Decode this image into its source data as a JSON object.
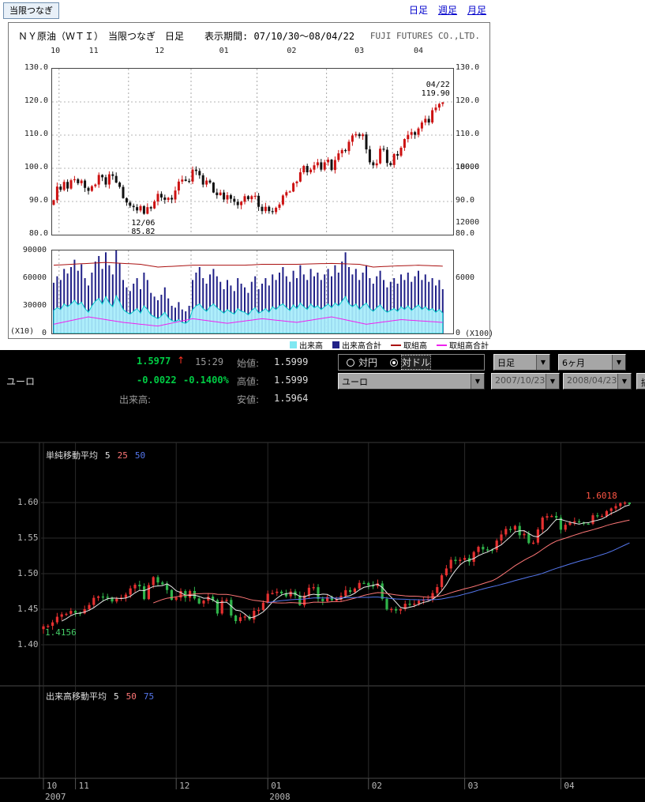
{
  "top_nav": {
    "tab": "当限つなぎ",
    "links": [
      {
        "label": "日足",
        "underline": false
      },
      {
        "label": "週足",
        "underline": true
      },
      {
        "label": "月足",
        "underline": true
      }
    ]
  },
  "wti": {
    "title": "ＮＹ原油（ＷＴＩ）　当限つなぎ　日足",
    "period_label": "表示期間: 07/10/30～08/04/22",
    "company": "FUJI FUTURES CO.,LTD."
  },
  "fx": {
    "pair": "ユーロ",
    "price": "1.5977",
    "arrow": "↑",
    "time": "15:29",
    "change": "-0.0022",
    "change_pct": "-0.1400%",
    "open_label": "始値:",
    "open_value": "1.5999",
    "high_label": "高値:",
    "high_value": "1.5999",
    "low_label": "安値:",
    "low_value": "1.5964",
    "volume_label": "出来高:",
    "radio_options": [
      {
        "label": "対円",
        "selected": false
      },
      {
        "label": "対ドル",
        "selected": true
      }
    ],
    "selects": {
      "timeframe": "日足",
      "range": "6ヶ月",
      "pair": "ユーロ",
      "date_from": "2007/10/23",
      "date_to": "2008/04/23"
    },
    "draw_button": "描"
  },
  "icons": {
    "dropdown_arrow": "▼"
  },
  "chart_data": [
    {
      "id": "wti_price",
      "type": "candlestick",
      "title": "ＮＹ原油（ＷＴＩ） 当限つなぎ 日足",
      "period": "07/10/30～08/04/22",
      "ylim": [
        80.0,
        130.0
      ],
      "yticks": [
        130,
        120,
        110,
        100,
        90,
        80
      ],
      "month_labels": [
        "10",
        "11",
        "12",
        "01",
        "02",
        "03",
        "04"
      ],
      "month_start_idx": [
        0,
        2,
        22,
        40,
        59,
        79,
        98
      ],
      "closes": [
        90.4,
        94.5,
        93.5,
        95.9,
        93.9,
        96.4,
        96.7,
        95.5,
        96.3,
        94.1,
        93.2,
        94.6,
        95.1,
        98.0,
        97.3,
        95.1,
        98.2,
        97.7,
        95.7,
        94.4,
        91.0,
        89.7,
        88.7,
        88.3,
        87.3,
        88.6,
        86.3,
        88.3,
        87.9,
        90.0,
        92.3,
        91.2,
        90.5,
        91.1,
        90.6,
        93.3,
        96.0,
        96.6,
        96.2,
        96.0,
        99.6,
        99.2,
        97.9,
        95.1,
        96.3,
        95.7,
        92.7,
        91.9,
        92.7,
        90.6,
        91.9,
        90.8,
        89.9,
        88.9,
        89.9,
        91.6,
        90.7,
        91.6,
        91.7,
        88.4,
        87.1,
        88.4,
        87.1,
        86.8,
        88.1,
        89.1,
        91.8,
        92.8,
        93.0,
        95.5,
        96.0,
        98.8,
        100.7,
        98.8,
        99.6,
        100.9,
        101.8,
        99.6,
        101.8,
        102.6,
        99.5,
        102.5,
        104.5,
        105.5,
        105.2,
        108.0,
        109.9,
        110.3,
        109.7,
        110.2,
        105.7,
        101.8,
        100.9,
        101.5,
        105.9,
        105.6,
        101.6,
        101.0,
        104.3,
        103.8,
        106.2,
        108.8,
        110.1,
        110.9,
        110.1,
        112.0,
        113.8,
        114.9,
        113.8,
        117.5,
        118.3,
        119.4,
        119.9
      ],
      "min_low": 85.82,
      "colors": {
        "up": "#cc1111",
        "down": "#111111"
      },
      "annotations": [
        {
          "lines": [
            "04/22",
            "119.90"
          ],
          "value": 119.9,
          "idx": 112,
          "dy": -26,
          "align": "right"
        },
        {
          "lines": [
            "12/06",
            "85.82"
          ],
          "value": 85.82,
          "idx": 26,
          "dy": 5,
          "align": "center"
        }
      ]
    },
    {
      "id": "wti_volume",
      "type": "bar",
      "left_axis": {
        "ticks": [
          90000,
          60000,
          30000,
          0
        ],
        "unit": "(X10)"
      },
      "right_axis": {
        "ticks": [
          18000,
          12000,
          6000,
          0
        ],
        "unit": "(X100)"
      },
      "bars_k": [
        55,
        62,
        58,
        70,
        65,
        72,
        80,
        68,
        75,
        60,
        52,
        66,
        78,
        84,
        70,
        88,
        74,
        64,
        90,
        76,
        58,
        50,
        46,
        54,
        60,
        48,
        66,
        58,
        44,
        40,
        36,
        42,
        50,
        38,
        30,
        28,
        34,
        26,
        24,
        30,
        58,
        66,
        72,
        60,
        54,
        64,
        70,
        62,
        56,
        48,
        58,
        52,
        46,
        60,
        54,
        50,
        44,
        56,
        62,
        48,
        54,
        60,
        52,
        64,
        58,
        66,
        72,
        62,
        56,
        68,
        60,
        74,
        64,
        58,
        70,
        62,
        66,
        58,
        64,
        70,
        62,
        74,
        66,
        78,
        88,
        72,
        64,
        70,
        58,
        66,
        74,
        60,
        54,
        62,
        68,
        58,
        50,
        56,
        60,
        54,
        64,
        58,
        66,
        56,
        62,
        68,
        58,
        64,
        56,
        60,
        52,
        58,
        48
      ],
      "area_k": [
        25,
        28,
        26,
        32,
        29,
        32,
        36,
        31,
        34,
        27,
        23,
        30,
        35,
        38,
        32,
        40,
        33,
        29,
        41,
        34,
        26,
        23,
        21,
        24,
        27,
        22,
        30,
        26,
        20,
        18,
        16,
        19,
        23,
        17,
        14,
        13,
        15,
        12,
        11,
        14,
        26,
        30,
        32,
        27,
        24,
        29,
        32,
        28,
        25,
        22,
        26,
        23,
        21,
        27,
        24,
        23,
        20,
        25,
        28,
        22,
        24,
        27,
        23,
        29,
        26,
        30,
        32,
        28,
        25,
        31,
        27,
        33,
        29,
        26,
        32,
        28,
        30,
        26,
        29,
        32,
        28,
        33,
        30,
        35,
        40,
        32,
        29,
        32,
        26,
        30,
        33,
        27,
        24,
        28,
        31,
        26,
        23,
        25,
        27,
        24,
        29,
        26,
        30,
        25,
        28,
        31,
        26,
        29,
        25,
        27,
        23,
        26,
        22
      ],
      "open_interest_points": [
        [
          0,
          74
        ],
        [
          15,
          77
        ],
        [
          25,
          75
        ],
        [
          30,
          72
        ],
        [
          40,
          74
        ],
        [
          55,
          74
        ],
        [
          60,
          75
        ],
        [
          70,
          75
        ],
        [
          80,
          76
        ],
        [
          88,
          75
        ],
        [
          92,
          72
        ],
        [
          97,
          73
        ],
        [
          105,
          74
        ],
        [
          112,
          73
        ]
      ],
      "oi_total_points": [
        [
          0,
          10
        ],
        [
          10,
          18
        ],
        [
          20,
          12
        ],
        [
          30,
          8
        ],
        [
          40,
          16
        ],
        [
          50,
          11
        ],
        [
          60,
          16
        ],
        [
          70,
          12
        ],
        [
          80,
          18
        ],
        [
          90,
          10
        ],
        [
          100,
          15
        ],
        [
          112,
          12
        ]
      ],
      "colors": {
        "bar": "#222288",
        "area": "#a8eefb",
        "area_line": "#00cccc",
        "oi": "#aa1111",
        "oi_total": "#ee22ee"
      },
      "legend": [
        {
          "label": "出来高",
          "color": "#7fe8f2",
          "marker": "square"
        },
        {
          "label": "出来高合計",
          "color": "#222288",
          "marker": "square"
        },
        {
          "label": "取組高",
          "color": "#aa1111",
          "marker": "line"
        },
        {
          "label": "取組高合計",
          "color": "#ee22ee",
          "marker": "line"
        }
      ]
    },
    {
      "id": "eurusd",
      "type": "candlestick",
      "pair": "ユーロ",
      "yticks": [
        1.6,
        1.55,
        1.5,
        1.45,
        1.4
      ],
      "month_labels": [
        "10",
        "11",
        "12",
        "01",
        "02",
        "03",
        "04"
      ],
      "month_start_idx": [
        0,
        7,
        29,
        49,
        71,
        92,
        113
      ],
      "year_labels": [
        {
          "text": "2007",
          "month_index": 0
        },
        {
          "text": "2008",
          "month_index": 3
        }
      ],
      "closes": [
        1.4259,
        1.4266,
        1.4315,
        1.4394,
        1.4428,
        1.4435,
        1.4476,
        1.4449,
        1.4441,
        1.45,
        1.456,
        1.466,
        1.4679,
        1.4675,
        1.466,
        1.4609,
        1.4646,
        1.4663,
        1.4705,
        1.4793,
        1.4844,
        1.4822,
        1.4642,
        1.4839,
        1.4951,
        1.4876,
        1.485,
        1.477,
        1.4633,
        1.4663,
        1.4755,
        1.4663,
        1.4756,
        1.4651,
        1.458,
        1.4621,
        1.4677,
        1.4628,
        1.4439,
        1.4621,
        1.4631,
        1.4411,
        1.4333,
        1.4387,
        1.4398,
        1.4356,
        1.4478,
        1.449,
        1.459,
        1.4718,
        1.4727,
        1.4747,
        1.4722,
        1.4681,
        1.4749,
        1.4693,
        1.4556,
        1.4692,
        1.4802,
        1.481,
        1.4646,
        1.4611,
        1.4671,
        1.4625,
        1.4633,
        1.4689,
        1.4768,
        1.4743,
        1.4791,
        1.487,
        1.4868,
        1.4834,
        1.4823,
        1.4862,
        1.4645,
        1.4496,
        1.4503,
        1.4481,
        1.4504,
        1.4577,
        1.4576,
        1.4577,
        1.4618,
        1.4633,
        1.4644,
        1.4727,
        1.4811,
        1.4977,
        1.5073,
        1.5195,
        1.5178,
        1.5195,
        1.522,
        1.5166,
        1.5304,
        1.5377,
        1.5341,
        1.5336,
        1.5335,
        1.5465,
        1.5551,
        1.5629,
        1.562,
        1.5671,
        1.554,
        1.556,
        1.543,
        1.5436,
        1.5621,
        1.5788,
        1.5808,
        1.5811,
        1.5787,
        1.5618,
        1.5687,
        1.5718,
        1.5736,
        1.5722,
        1.5703,
        1.5702,
        1.5821,
        1.5809,
        1.581,
        1.588,
        1.5917,
        1.595,
        1.599,
        1.5999,
        1.5977
      ],
      "period_high": 1.6018,
      "period_low": 1.4156,
      "high_annotation": "1.6018",
      "low_annotation": "1.4156",
      "sma_label": {
        "title": "単純移動平均",
        "periods": [
          "5",
          "25",
          "50"
        ]
      },
      "volume_sma_label": {
        "title": "出来高移動平均",
        "periods": [
          "5",
          "50",
          "75"
        ]
      },
      "colors": {
        "up": "#e63030",
        "down": "#2fb34a",
        "ma": [
          "#e8e8e8",
          "#ff7777",
          "#5577ee"
        ],
        "high_ann": "#ff5544",
        "low_ann": "#44cc66"
      }
    }
  ]
}
